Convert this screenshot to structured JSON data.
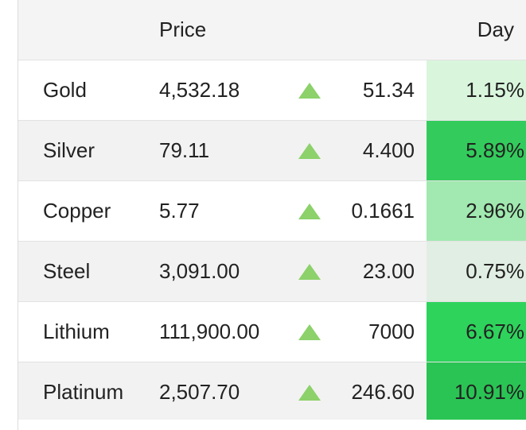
{
  "header": {
    "price_label": "Price",
    "day_label": "Day"
  },
  "colors": {
    "up_arrow": "#8cd16a",
    "heat_low": "#e4f4e6",
    "heat_strong": "#2ecc5a"
  },
  "rows": [
    {
      "name": "Gold",
      "price": "4,532.18",
      "direction": "up",
      "change": "51.34",
      "pct": "1.15%",
      "heat": "#d9f6dd"
    },
    {
      "name": "Silver",
      "price": "79.11",
      "direction": "up",
      "change": "4.400",
      "pct": "5.89%",
      "heat": "#33cc5c"
    },
    {
      "name": "Copper",
      "price": "5.77",
      "direction": "up",
      "change": "0.1661",
      "pct": "2.96%",
      "heat": "#a1e9b0"
    },
    {
      "name": "Steel",
      "price": "3,091.00",
      "direction": "up",
      "change": "23.00",
      "pct": "0.75%",
      "heat": "#e1eee3"
    },
    {
      "name": "Lithium",
      "price": "111,900.00",
      "direction": "up",
      "change": "7000",
      "pct": "6.67%",
      "heat": "#2ed35c"
    },
    {
      "name": "Platinum",
      "price": "2,507.70",
      "direction": "up",
      "change": "246.60",
      "pct": "10.91%",
      "heat": "#2ac454"
    }
  ]
}
